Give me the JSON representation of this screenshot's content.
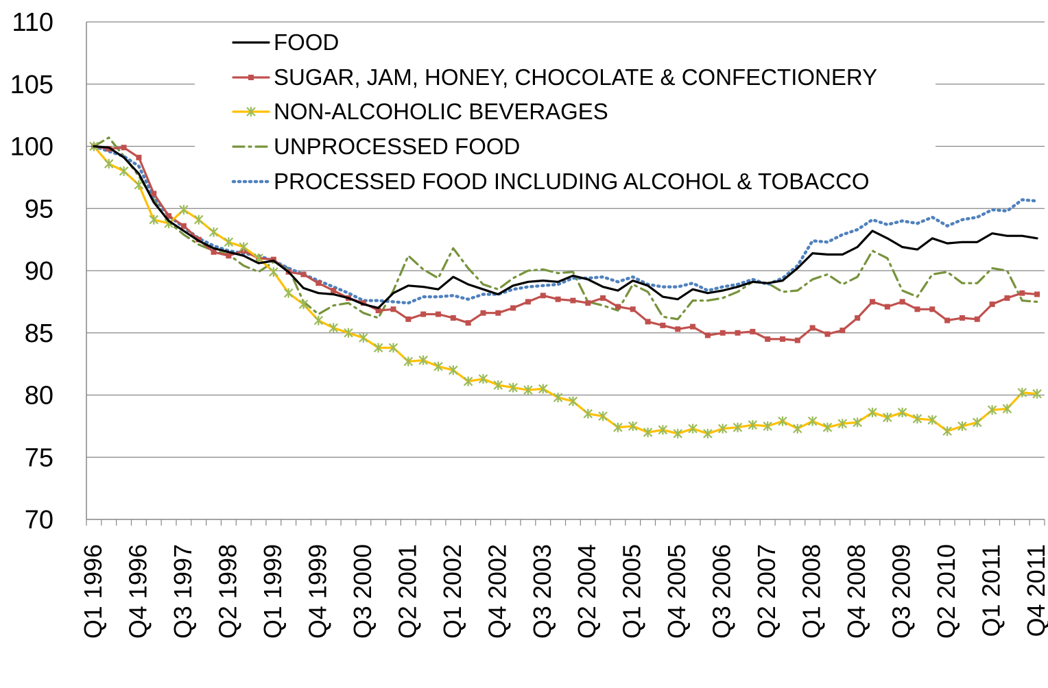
{
  "chart_data": {
    "type": "line",
    "title": "",
    "xlabel": "",
    "ylabel": "",
    "ylim": [
      70,
      110
    ],
    "yticks": [
      70,
      75,
      80,
      85,
      90,
      95,
      100,
      105,
      110
    ],
    "grid": "horizontal",
    "legend_position": "top-left inside plot",
    "categories": [
      "Q1 1996",
      "Q2 1996",
      "Q3 1996",
      "Q4 1996",
      "Q1 1997",
      "Q2 1997",
      "Q3 1997",
      "Q4 1997",
      "Q1 1998",
      "Q2 1998",
      "Q3 1998",
      "Q4 1998",
      "Q1 1999",
      "Q2 1999",
      "Q3 1999",
      "Q4 1999",
      "Q1 2000",
      "Q2 2000",
      "Q3 2000",
      "Q4 2000",
      "Q1 2001",
      "Q2 2001",
      "Q3 2001",
      "Q4 2001",
      "Q1 2002",
      "Q2 2002",
      "Q3 2002",
      "Q4 2002",
      "Q1 2003",
      "Q2 2003",
      "Q3 2003",
      "Q4 2003",
      "Q1 2004",
      "Q2 2004",
      "Q3 2004",
      "Q4 2004",
      "Q1 2005",
      "Q2 2005",
      "Q3 2005",
      "Q4 2005",
      "Q1 2006",
      "Q2 2006",
      "Q3 2006",
      "Q4 2006",
      "Q1 2007",
      "Q2 2007",
      "Q3 2007",
      "Q4 2007",
      "Q1 2008",
      "Q2 2008",
      "Q3 2008",
      "Q4 2008",
      "Q1 2009",
      "Q2 2009",
      "Q3 2009",
      "Q4 2009",
      "Q1 2010",
      "Q2 2010",
      "Q3 2010",
      "Q4 2010",
      "Q1 2011",
      "Q2 2011",
      "Q3 2011",
      "Q4 2011"
    ],
    "tick_labels": [
      "Q1 1996",
      "Q4 1996",
      "Q3 1997",
      "Q2 1998",
      "Q1 1999",
      "Q4 1999",
      "Q3 2000",
      "Q2 2001",
      "Q1 2002",
      "Q4 2002",
      "Q3 2003",
      "Q2 2004",
      "Q1 2005",
      "Q4 2005",
      "Q3 2006",
      "Q2 2007",
      "Q1 2008",
      "Q4 2008",
      "Q3 2009",
      "Q2 2010",
      "Q1 2011",
      "Q4 2011"
    ],
    "series": [
      {
        "name": "FOOD",
        "color": "#000000",
        "style": "solid",
        "marker": "none",
        "values": [
          100.0,
          99.9,
          99.1,
          97.8,
          95.5,
          94.0,
          93.2,
          92.4,
          91.8,
          91.5,
          91.2,
          90.6,
          90.8,
          89.9,
          88.6,
          88.2,
          88.1,
          87.8,
          87.3,
          87.0,
          88.2,
          88.8,
          88.7,
          88.5,
          89.5,
          88.9,
          88.5,
          88.1,
          88.8,
          89.1,
          89.2,
          89.1,
          89.6,
          89.3,
          88.7,
          88.4,
          89.2,
          88.8,
          87.9,
          87.7,
          88.5,
          88.2,
          88.4,
          88.7,
          89.1,
          89.0,
          89.2,
          90.2,
          91.4,
          91.3,
          91.3,
          91.9,
          93.2,
          92.6,
          91.9,
          91.7,
          92.6,
          92.2,
          92.3,
          92.3,
          93.0,
          92.8,
          92.8,
          92.6
        ]
      },
      {
        "name": "SUGAR, JAM, HONEY, CHOCOLATE & CONFECTIONERY",
        "color": "#C0504D",
        "style": "solid",
        "marker": "square",
        "values": [
          100.0,
          99.8,
          99.9,
          99.1,
          96.2,
          94.4,
          93.6,
          92.5,
          91.5,
          91.2,
          91.6,
          91.0,
          90.9,
          89.9,
          89.7,
          89.0,
          88.4,
          87.8,
          87.4,
          86.8,
          86.9,
          86.1,
          86.5,
          86.5,
          86.2,
          85.8,
          86.6,
          86.6,
          87.0,
          87.5,
          88.0,
          87.7,
          87.6,
          87.4,
          87.8,
          87.1,
          86.9,
          85.9,
          85.6,
          85.3,
          85.5,
          84.8,
          85.0,
          85.0,
          85.1,
          84.5,
          84.5,
          84.4,
          85.4,
          84.9,
          85.2,
          86.2,
          87.5,
          87.1,
          87.5,
          86.9,
          86.9,
          86.0,
          86.2,
          86.1,
          87.3,
          87.8,
          88.2,
          88.1
        ]
      },
      {
        "name": "NON-ALCOHOLIC BEVERAGES",
        "color": "#FFC000",
        "style": "solid",
        "marker": "star",
        "marker_color": "#9BBB59",
        "values": [
          100.0,
          98.6,
          98.0,
          96.9,
          94.1,
          93.8,
          94.9,
          94.1,
          93.1,
          92.3,
          91.9,
          91.0,
          89.9,
          88.2,
          87.3,
          86.0,
          85.4,
          85.0,
          84.6,
          83.8,
          83.8,
          82.7,
          82.8,
          82.3,
          82.0,
          81.1,
          81.3,
          80.8,
          80.6,
          80.4,
          80.5,
          79.8,
          79.5,
          78.5,
          78.3,
          77.4,
          77.5,
          77.0,
          77.2,
          76.9,
          77.3,
          76.9,
          77.3,
          77.4,
          77.6,
          77.5,
          77.9,
          77.3,
          77.9,
          77.4,
          77.7,
          77.8,
          78.6,
          78.2,
          78.6,
          78.1,
          78.0,
          77.1,
          77.5,
          77.8,
          78.8,
          78.9,
          80.2,
          80.1
        ]
      },
      {
        "name": "UNPROCESSED FOOD",
        "color": "#77933C",
        "style": "dashdot",
        "marker": "none",
        "values": [
          100.0,
          100.7,
          99.2,
          97.6,
          95.7,
          93.9,
          92.9,
          92.1,
          91.6,
          91.3,
          90.4,
          89.9,
          90.7,
          90.2,
          87.5,
          86.5,
          87.2,
          87.4,
          86.6,
          86.2,
          88.4,
          91.2,
          90.1,
          89.4,
          91.8,
          90.2,
          88.9,
          88.5,
          89.4,
          90.0,
          90.1,
          89.8,
          89.9,
          87.5,
          87.2,
          86.8,
          88.9,
          88.3,
          86.3,
          86.1,
          87.6,
          87.6,
          87.8,
          88.3,
          89.1,
          89.0,
          88.3,
          88.4,
          89.3,
          89.7,
          88.9,
          89.5,
          91.6,
          91.0,
          88.4,
          87.9,
          89.7,
          89.9,
          89.0,
          89.0,
          90.2,
          90.0,
          87.6,
          87.5
        ]
      },
      {
        "name": "PROCESSED FOOD INCLUDING ALCOHOL & TOBACCO",
        "color": "#4F81BD",
        "style": "dotted",
        "marker": "none",
        "values": [
          100.0,
          99.6,
          99.2,
          98.4,
          95.9,
          94.4,
          93.5,
          92.6,
          92.0,
          91.6,
          91.4,
          91.2,
          90.8,
          90.2,
          89.7,
          89.2,
          88.7,
          88.2,
          87.6,
          87.6,
          87.5,
          87.4,
          87.9,
          87.9,
          88.0,
          87.7,
          88.1,
          88.1,
          88.5,
          88.7,
          88.8,
          88.9,
          89.4,
          89.4,
          89.5,
          89.1,
          89.5,
          88.9,
          88.7,
          88.7,
          89.0,
          88.4,
          88.7,
          88.9,
          89.3,
          88.9,
          89.4,
          90.4,
          92.4,
          92.3,
          92.9,
          93.3,
          94.1,
          93.7,
          94.0,
          93.8,
          94.3,
          93.6,
          94.1,
          94.3,
          94.9,
          94.8,
          95.7,
          95.6
        ]
      }
    ]
  }
}
